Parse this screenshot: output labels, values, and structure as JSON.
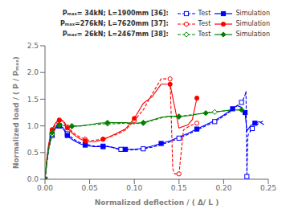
{
  "chart_data": {
    "type": "line",
    "xlabel": "Normalized deflection /  ( Δ/ L )",
    "ylabel": "Normalized load / ( P / Pₘₐₓ)",
    "xlim": [
      0.0,
      0.25
    ],
    "ylim": [
      0.0,
      2.5
    ],
    "xticks": [
      {
        "value": 0.0,
        "label": "0.00"
      },
      0.05,
      {
        "value": 0.1,
        "label": "0.10"
      },
      0.15,
      {
        "value": 0.2,
        "label": "0.20"
      },
      0.25
    ],
    "yticks": [
      {
        "value": 0.0,
        "label": "0.0"
      },
      0.5,
      {
        "value": 1.0,
        "label": "1.0"
      },
      1.5,
      {
        "value": 2.0,
        "label": "2.0"
      },
      2.5
    ],
    "grid": false,
    "legend": "upper right",
    "annotations": [
      "Pₘₐₓ= 34kN; L=1900mm [36]:",
      "Pₘₐₓ=276kN; L=7620mm [37]:",
      "Pₘₐₓ= 26kN; L=2467mm [38]:"
    ],
    "series": [
      {
        "name": "Test",
        "color": "#0000FF",
        "line_style": "dashed",
        "marker": "square",
        "x": [
          0.0,
          0.002,
          0.004,
          0.006,
          0.008,
          0.01,
          0.012,
          0.014,
          0.016,
          0.018,
          0.02,
          0.022,
          0.025,
          0.03,
          0.035,
          0.04,
          0.045,
          0.05,
          0.055,
          0.06,
          0.065,
          0.07,
          0.075,
          0.08,
          0.085,
          0.09,
          0.095,
          0.1,
          0.11,
          0.12,
          0.13,
          0.14,
          0.15,
          0.16,
          0.17,
          0.18,
          0.19,
          0.2,
          0.21,
          0.215,
          0.22,
          0.222,
          0.224,
          0.225,
          0.226,
          0.227,
          0.228,
          0.23,
          0.232,
          0.235,
          0.24,
          0.245
        ],
        "values": [
          0.0,
          0.3,
          0.55,
          0.7,
          0.82,
          0.9,
          0.95,
          0.98,
          1.0,
          0.99,
          0.97,
          0.92,
          0.85,
          0.78,
          0.72,
          0.68,
          0.66,
          0.64,
          0.62,
          0.62,
          0.62,
          0.62,
          0.6,
          0.57,
          0.56,
          0.55,
          0.55,
          0.55,
          0.57,
          0.6,
          0.65,
          0.7,
          0.77,
          0.84,
          0.92,
          1.0,
          1.08,
          1.18,
          1.3,
          1.38,
          1.44,
          1.5,
          1.58,
          1.65,
          0.05,
          0.8,
          0.85,
          0.9,
          0.95,
          1.0,
          1.05,
          1.1
        ]
      },
      {
        "name": "Simulation",
        "color": "#0000FF",
        "line_style": "solid",
        "marker": "square",
        "x": [
          0.0,
          0.002,
          0.004,
          0.006,
          0.008,
          0.01,
          0.012,
          0.014,
          0.016,
          0.018,
          0.02,
          0.022,
          0.025,
          0.03,
          0.035,
          0.04,
          0.045,
          0.05,
          0.055,
          0.06,
          0.065,
          0.07,
          0.075,
          0.08,
          0.09,
          0.1,
          0.11,
          0.12,
          0.13,
          0.14,
          0.15,
          0.16,
          0.17,
          0.18,
          0.19,
          0.2,
          0.21,
          0.215,
          0.22,
          0.222,
          0.224,
          0.226,
          0.228,
          0.23,
          0.235,
          0.24,
          0.245
        ],
        "values": [
          0.0,
          0.32,
          0.58,
          0.72,
          0.84,
          0.91,
          0.96,
          0.99,
          1.0,
          0.98,
          0.96,
          0.9,
          0.82,
          0.75,
          0.7,
          0.66,
          0.64,
          0.62,
          0.61,
          0.61,
          0.61,
          0.61,
          0.6,
          0.58,
          0.56,
          0.56,
          0.58,
          0.62,
          0.67,
          0.72,
          0.79,
          0.86,
          0.94,
          1.02,
          1.1,
          1.2,
          1.32,
          1.38,
          1.35,
          1.3,
          1.25,
          0.9,
          0.95,
          1.0,
          1.05,
          1.08,
          1.02
        ]
      },
      {
        "name": "Test",
        "color": "#FF0000",
        "line_style": "dashed",
        "marker": "circle",
        "x": [
          0.0,
          0.002,
          0.004,
          0.006,
          0.008,
          0.01,
          0.012,
          0.014,
          0.016,
          0.018,
          0.02,
          0.022,
          0.025,
          0.03,
          0.035,
          0.04,
          0.045,
          0.05,
          0.055,
          0.06,
          0.065,
          0.07,
          0.08,
          0.09,
          0.1,
          0.11,
          0.12,
          0.13,
          0.14,
          0.142,
          0.143,
          0.145,
          0.15,
          0.155,
          0.16,
          0.165,
          0.17
        ],
        "values": [
          0.0,
          0.35,
          0.62,
          0.78,
          0.9,
          0.98,
          1.05,
          1.08,
          1.1,
          1.11,
          1.1,
          1.06,
          0.98,
          0.9,
          0.83,
          0.78,
          0.75,
          0.73,
          0.73,
          0.74,
          0.75,
          0.78,
          0.84,
          0.92,
          1.1,
          1.3,
          1.6,
          1.88,
          1.88,
          0.8,
          0.2,
          0.1,
          0.1,
          0.92,
          0.98,
          1.02,
          1.05
        ]
      },
      {
        "name": "Simulation",
        "color": "#FF0000",
        "line_style": "solid",
        "marker": "circle",
        "x": [
          0.0,
          0.002,
          0.004,
          0.006,
          0.008,
          0.01,
          0.012,
          0.014,
          0.016,
          0.018,
          0.02,
          0.022,
          0.025,
          0.03,
          0.035,
          0.04,
          0.045,
          0.05,
          0.055,
          0.06,
          0.065,
          0.07,
          0.08,
          0.09,
          0.1,
          0.11,
          0.12,
          0.13,
          0.14,
          0.15,
          0.16,
          0.165,
          0.17
        ],
        "values": [
          0.0,
          0.38,
          0.65,
          0.82,
          0.93,
          1.0,
          1.06,
          1.09,
          1.11,
          1.11,
          1.09,
          1.04,
          0.96,
          0.87,
          0.8,
          0.75,
          0.72,
          0.7,
          0.7,
          0.72,
          0.75,
          0.78,
          0.86,
          0.94,
          1.14,
          1.42,
          1.55,
          1.78,
          1.78,
          0.96,
          1.02,
          1.12,
          1.52
        ]
      },
      {
        "name": "Test",
        "color": "#008000",
        "line_style": "dashed",
        "marker": "diamond",
        "x": [
          0.0,
          0.002,
          0.004,
          0.006,
          0.008,
          0.01,
          0.012,
          0.014,
          0.016,
          0.018,
          0.02,
          0.025,
          0.03,
          0.04,
          0.05,
          0.06,
          0.07,
          0.08,
          0.09,
          0.1,
          0.11,
          0.12,
          0.13,
          0.14,
          0.15,
          0.16,
          0.17,
          0.18,
          0.19,
          0.2,
          0.21,
          0.22
        ],
        "values": [
          0.0,
          0.3,
          0.55,
          0.72,
          0.84,
          0.92,
          0.97,
          1.0,
          1.01,
          1.02,
          1.02,
          1.0,
          1.0,
          1.0,
          1.02,
          1.03,
          1.04,
          1.04,
          1.05,
          1.04,
          1.05,
          1.1,
          1.15,
          1.18,
          1.18,
          1.2,
          1.22,
          1.24,
          1.26,
          1.28,
          1.3,
          1.3
        ]
      },
      {
        "name": "Simulation",
        "color": "#008000",
        "line_style": "solid",
        "marker": "diamond",
        "x": [
          0.0,
          0.002,
          0.004,
          0.006,
          0.008,
          0.01,
          0.012,
          0.014,
          0.016,
          0.018,
          0.02,
          0.025,
          0.03,
          0.04,
          0.05,
          0.06,
          0.07,
          0.08,
          0.09,
          0.1,
          0.11,
          0.12,
          0.13,
          0.14,
          0.15,
          0.16,
          0.165,
          0.17,
          0.18,
          0.19,
          0.2,
          0.21,
          0.22
        ],
        "values": [
          0.0,
          0.32,
          0.58,
          0.75,
          0.87,
          0.94,
          0.99,
          1.01,
          1.02,
          1.02,
          1.01,
          0.99,
          0.99,
          1.0,
          1.02,
          1.05,
          1.06,
          1.06,
          1.06,
          1.05,
          1.06,
          1.11,
          1.16,
          1.18,
          1.17,
          1.19,
          1.2,
          1.22,
          1.24,
          1.26,
          1.28,
          1.3,
          1.3
        ]
      }
    ]
  }
}
